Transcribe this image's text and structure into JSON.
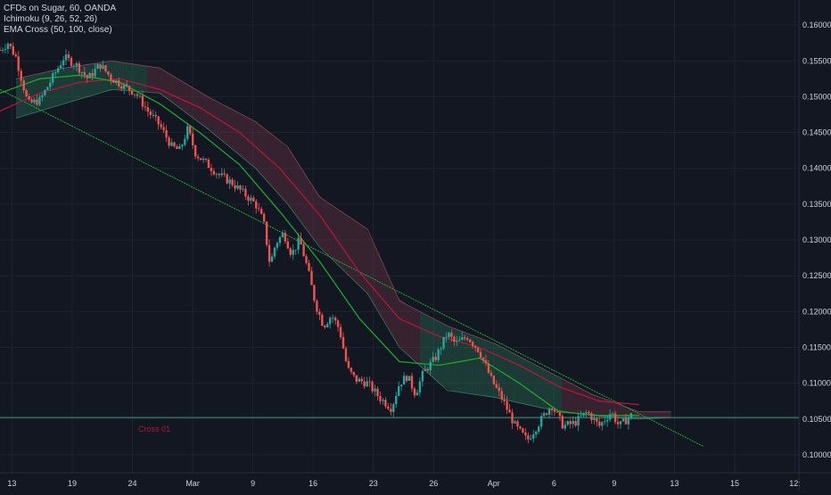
{
  "legend": {
    "symbol": "CFDs on Sugar, 60, OANDA",
    "ichimoku": "Ichimoku (9, 26, 52, 26)",
    "ema": "EMA Cross (50, 100, close)"
  },
  "annotation": {
    "label": "Cross 01"
  },
  "colors": {
    "background": "#131722",
    "grid": "#1f2330",
    "axis_text": "#d1d4dc",
    "up": "#26a69a",
    "down": "#ef5350",
    "ema_fast": "#1fa62a",
    "ema_slow": "#b0173c",
    "trendline": "#1fae2f",
    "horizontal": "#3d9b7c",
    "cloud_green": "#2e7d5b",
    "cloud_red": "#7b3a4a",
    "annotation": "#b0173c"
  },
  "chart_data": {
    "type": "candlestick",
    "symbol": "CFDs on Sugar",
    "interval": "60",
    "source": "OANDA",
    "xlabels": [
      "13",
      "19",
      "24",
      "Mar",
      "9",
      "16",
      "23",
      "26",
      "Apr",
      "6",
      "9",
      "13",
      "15",
      "12:"
    ],
    "yticks": [
      0.1,
      0.105,
      0.11,
      0.115,
      0.12,
      0.125,
      0.13,
      0.135,
      0.14,
      0.145,
      0.15,
      0.155,
      0.16
    ],
    "ytick_labels": [
      "0.10000",
      "0.10500",
      "0.11000",
      "0.11500",
      "0.12000",
      "0.12500",
      "0.13000",
      "0.13500",
      "0.14000",
      "0.14500",
      "0.15000",
      "0.15500",
      "0.16000"
    ],
    "ylim": [
      0.0975,
      0.1635
    ],
    "price_path": [
      {
        "t": 0,
        "p": 0.1565
      },
      {
        "t": 0.01,
        "p": 0.1575
      },
      {
        "t": 0.02,
        "p": 0.1555
      },
      {
        "t": 0.035,
        "p": 0.149
      },
      {
        "t": 0.05,
        "p": 0.1495
      },
      {
        "t": 0.065,
        "p": 0.1525
      },
      {
        "t": 0.08,
        "p": 0.1555
      },
      {
        "t": 0.095,
        "p": 0.1545
      },
      {
        "t": 0.11,
        "p": 0.1525
      },
      {
        "t": 0.125,
        "p": 0.1545
      },
      {
        "t": 0.14,
        "p": 0.1525
      },
      {
        "t": 0.155,
        "p": 0.1515
      },
      {
        "t": 0.17,
        "p": 0.1505
      },
      {
        "t": 0.185,
        "p": 0.148
      },
      {
        "t": 0.2,
        "p": 0.146
      },
      {
        "t": 0.215,
        "p": 0.143
      },
      {
        "t": 0.225,
        "p": 0.1425
      },
      {
        "t": 0.235,
        "p": 0.1455
      },
      {
        "t": 0.245,
        "p": 0.142
      },
      {
        "t": 0.26,
        "p": 0.1405
      },
      {
        "t": 0.275,
        "p": 0.139
      },
      {
        "t": 0.29,
        "p": 0.138
      },
      {
        "t": 0.305,
        "p": 0.1365
      },
      {
        "t": 0.32,
        "p": 0.135
      },
      {
        "t": 0.33,
        "p": 0.1325
      },
      {
        "t": 0.338,
        "p": 0.1265
      },
      {
        "t": 0.345,
        "p": 0.1295
      },
      {
        "t": 0.355,
        "p": 0.131
      },
      {
        "t": 0.365,
        "p": 0.128
      },
      {
        "t": 0.375,
        "p": 0.13
      },
      {
        "t": 0.385,
        "p": 0.126
      },
      {
        "t": 0.395,
        "p": 0.121
      },
      {
        "t": 0.405,
        "p": 0.118
      },
      {
        "t": 0.415,
        "p": 0.1195
      },
      {
        "t": 0.425,
        "p": 0.1175
      },
      {
        "t": 0.435,
        "p": 0.112
      },
      {
        "t": 0.445,
        "p": 0.1105
      },
      {
        "t": 0.46,
        "p": 0.11
      },
      {
        "t": 0.475,
        "p": 0.108
      },
      {
        "t": 0.49,
        "p": 0.1065
      },
      {
        "t": 0.5,
        "p": 0.11
      },
      {
        "t": 0.51,
        "p": 0.111
      },
      {
        "t": 0.52,
        "p": 0.1085
      },
      {
        "t": 0.53,
        "p": 0.1115
      },
      {
        "t": 0.545,
        "p": 0.1135
      },
      {
        "t": 0.56,
        "p": 0.117
      },
      {
        "t": 0.57,
        "p": 0.1155
      },
      {
        "t": 0.585,
        "p": 0.1165
      },
      {
        "t": 0.6,
        "p": 0.1145
      },
      {
        "t": 0.615,
        "p": 0.1105
      },
      {
        "t": 0.63,
        "p": 0.1075
      },
      {
        "t": 0.645,
        "p": 0.104
      },
      {
        "t": 0.66,
        "p": 0.102
      },
      {
        "t": 0.675,
        "p": 0.1045
      },
      {
        "t": 0.69,
        "p": 0.107
      },
      {
        "t": 0.705,
        "p": 0.104
      },
      {
        "t": 0.72,
        "p": 0.1045
      },
      {
        "t": 0.735,
        "p": 0.106
      },
      {
        "t": 0.75,
        "p": 0.104
      },
      {
        "t": 0.765,
        "p": 0.106
      },
      {
        "t": 0.775,
        "p": 0.104
      },
      {
        "t": 0.79,
        "p": 0.1055
      }
    ],
    "ema_fast": [
      {
        "t": 0,
        "p": 0.1505
      },
      {
        "t": 0.05,
        "p": 0.1525
      },
      {
        "t": 0.1,
        "p": 0.153
      },
      {
        "t": 0.15,
        "p": 0.152
      },
      {
        "t": 0.2,
        "p": 0.149
      },
      {
        "t": 0.25,
        "p": 0.145
      },
      {
        "t": 0.3,
        "p": 0.1405
      },
      {
        "t": 0.35,
        "p": 0.134
      },
      {
        "t": 0.4,
        "p": 0.127
      },
      {
        "t": 0.45,
        "p": 0.119
      },
      {
        "t": 0.5,
        "p": 0.113
      },
      {
        "t": 0.55,
        "p": 0.1125
      },
      {
        "t": 0.6,
        "p": 0.1135
      },
      {
        "t": 0.65,
        "p": 0.11
      },
      {
        "t": 0.7,
        "p": 0.106
      },
      {
        "t": 0.75,
        "p": 0.1055
      },
      {
        "t": 0.8,
        "p": 0.1055
      }
    ],
    "ema_slow": [
      {
        "t": 0,
        "p": 0.148
      },
      {
        "t": 0.05,
        "p": 0.1505
      },
      {
        "t": 0.1,
        "p": 0.152
      },
      {
        "t": 0.15,
        "p": 0.1525
      },
      {
        "t": 0.2,
        "p": 0.151
      },
      {
        "t": 0.25,
        "p": 0.1485
      },
      {
        "t": 0.3,
        "p": 0.145
      },
      {
        "t": 0.35,
        "p": 0.14
      },
      {
        "t": 0.4,
        "p": 0.1335
      },
      {
        "t": 0.45,
        "p": 0.1255
      },
      {
        "t": 0.5,
        "p": 0.119
      },
      {
        "t": 0.55,
        "p": 0.1165
      },
      {
        "t": 0.6,
        "p": 0.115
      },
      {
        "t": 0.65,
        "p": 0.1125
      },
      {
        "t": 0.7,
        "p": 0.1095
      },
      {
        "t": 0.75,
        "p": 0.1075
      },
      {
        "t": 0.8,
        "p": 0.107
      }
    ],
    "cloud_top": [
      {
        "t": 0.02,
        "p": 0.1525
      },
      {
        "t": 0.08,
        "p": 0.154
      },
      {
        "t": 0.14,
        "p": 0.155
      },
      {
        "t": 0.2,
        "p": 0.154
      },
      {
        "t": 0.26,
        "p": 0.15
      },
      {
        "t": 0.32,
        "p": 0.1465
      },
      {
        "t": 0.36,
        "p": 0.143
      },
      {
        "t": 0.4,
        "p": 0.136
      },
      {
        "t": 0.46,
        "p": 0.1315
      },
      {
        "t": 0.5,
        "p": 0.1215
      },
      {
        "t": 0.56,
        "p": 0.118
      },
      {
        "t": 0.62,
        "p": 0.1155
      },
      {
        "t": 0.68,
        "p": 0.112
      },
      {
        "t": 0.74,
        "p": 0.1085
      },
      {
        "t": 0.8,
        "p": 0.106
      },
      {
        "t": 0.84,
        "p": 0.106
      }
    ],
    "cloud_bottom": [
      {
        "t": 0.02,
        "p": 0.147
      },
      {
        "t": 0.08,
        "p": 0.149
      },
      {
        "t": 0.14,
        "p": 0.151
      },
      {
        "t": 0.2,
        "p": 0.1505
      },
      {
        "t": 0.26,
        "p": 0.1455
      },
      {
        "t": 0.32,
        "p": 0.14
      },
      {
        "t": 0.36,
        "p": 0.135
      },
      {
        "t": 0.4,
        "p": 0.129
      },
      {
        "t": 0.46,
        "p": 0.1225
      },
      {
        "t": 0.5,
        "p": 0.115
      },
      {
        "t": 0.56,
        "p": 0.109
      },
      {
        "t": 0.62,
        "p": 0.108
      },
      {
        "t": 0.68,
        "p": 0.1065
      },
      {
        "t": 0.74,
        "p": 0.1055
      },
      {
        "t": 0.8,
        "p": 0.105
      },
      {
        "t": 0.84,
        "p": 0.1052
      }
    ],
    "trendline": [
      {
        "t": 0,
        "p": 0.151
      },
      {
        "t": 0.88,
        "p": 0.1012
      }
    ],
    "horizontal_level": 0.1052,
    "grid": true
  }
}
